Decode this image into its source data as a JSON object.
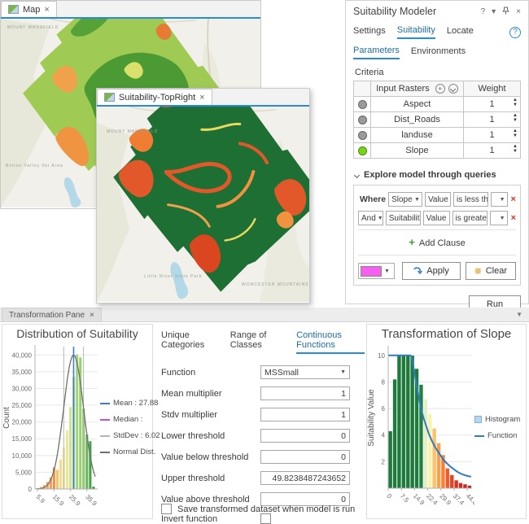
{
  "palette": {
    "accent": "#2a8ad4",
    "gray_dot": "#9b9b9b",
    "green_dot": "#76d514",
    "query_swatch": "#f560ee",
    "red_x": "#d93025",
    "add_green": "#3f9c35"
  },
  "map1": {
    "tab_label": "Map",
    "close": "×",
    "basemap_labels": [
      "MOUNT MANSFIELD",
      "Bolton Valley Ski Area",
      "Little River State Park"
    ]
  },
  "map2": {
    "tab_label": "Suitability-TopRight",
    "close": "×",
    "basemap_labels": [
      "MOUNT MANSFIELD",
      "Little River State Park",
      "WORCESTER MOUNTAINS"
    ]
  },
  "modeler": {
    "title": "Suitability Modeler",
    "titlebar": {
      "help": "?",
      "menu": "▾",
      "pin": "pin",
      "close": "×"
    },
    "tabs": [
      "Settings",
      "Suitability",
      "Locate"
    ],
    "active_tab": "Suitability",
    "help_badge": "?",
    "subtabs": [
      "Parameters",
      "Environments"
    ],
    "active_subtab": "Parameters",
    "criteria_label": "Criteria",
    "table": {
      "col1_header": "Input Rasters",
      "plus_icon": "+",
      "col2_header": "Weight",
      "rows": [
        {
          "name": "Aspect",
          "weight": "1",
          "dot": "#9b9b9b"
        },
        {
          "name": "Dist_Roads",
          "weight": "1",
          "dot": "#9b9b9b"
        },
        {
          "name": "landuse",
          "weight": "1",
          "dot": "#9b9b9b"
        },
        {
          "name": "Slope",
          "weight": "1",
          "dot": "#76d514"
        }
      ]
    },
    "queries": {
      "section_label": "Explore model through queries",
      "rows": [
        {
          "conj": "Where",
          "conj_is_dropdown": false,
          "field": "Slope",
          "part": "Value",
          "op": "is less th",
          "value": ""
        },
        {
          "conj": "And",
          "conj_is_dropdown": true,
          "field": "Suitabilit",
          "part": "Value",
          "op": "is greater",
          "value": ""
        }
      ],
      "add_clause": "Add Clause",
      "apply": "Apply",
      "clear": "Clear"
    },
    "run": "Run"
  },
  "tpane": {
    "tab_label": "Transformation Pane",
    "close": "×",
    "form": {
      "tabs": [
        "Unique Categories",
        "Range of Classes",
        "Continuous Functions"
      ],
      "active_tab": "Continuous Functions",
      "fields": [
        {
          "label": "Function",
          "value": "MSSmall",
          "type": "select"
        },
        {
          "label": "Mean multiplier",
          "value": "1",
          "type": "number"
        },
        {
          "label": "Stdv multiplier",
          "value": "1",
          "type": "number"
        },
        {
          "label": "Lower threshold",
          "value": "0",
          "type": "number"
        },
        {
          "label": "Value below threshold",
          "value": "0",
          "type": "number"
        },
        {
          "label": "Upper threshold",
          "value": "49.8238487243652",
          "type": "number"
        },
        {
          "label": "Value above threshold",
          "value": "0",
          "type": "number"
        },
        {
          "label": "Invert function",
          "value": "",
          "type": "checkbox",
          "checked": false
        }
      ],
      "save_label": "Save transformed dataset when model is run",
      "save_checked": false
    }
  },
  "chart_data": [
    {
      "type": "bar",
      "title": "Distribution of Suitability",
      "xlabel": "",
      "ylabel": "Count",
      "x_ticks": [
        5.9,
        15.9,
        25.9,
        35.9
      ],
      "y_ticks": [
        0,
        5000,
        10000,
        15000,
        20000,
        25000,
        30000,
        35000,
        40000
      ],
      "xlim": [
        4.4,
        42.5
      ],
      "ylim": [
        0,
        42500
      ],
      "y_format": "comma",
      "bars": {
        "start": 5,
        "width": 2,
        "values": [
          300,
          650,
          1200,
          2100,
          3500,
          6500,
          5800,
          8800,
          12500,
          17500,
          24500,
          33500,
          40200,
          39300,
          24000,
          16300,
          14300,
          700
        ],
        "colors": [
          "#f3b577",
          "#f2b070",
          "#f1aa67",
          "#f0a35c",
          "#ef9c52",
          "#ed9345",
          "#f0c36e",
          "#f2dc8e",
          "#f2e89c",
          "#e7e79c",
          "#cfe296",
          "#b7da85",
          "#a3d478",
          "#98d06e",
          "#86c663",
          "#68b755",
          "#46a149",
          "#2f8e3f"
        ]
      },
      "mean": 27.88,
      "median": null,
      "stddev": 6.02,
      "normal": {
        "mean": 27.88,
        "sd": 6.02,
        "peak": 40000
      },
      "stddev_lines": [
        21.86,
        33.9
      ],
      "legend": [
        {
          "label": "Mean : 27.88",
          "color": "#3a7bd5",
          "type": "line"
        },
        {
          "label": "Median :",
          "color": "#c44fd0",
          "type": "line"
        },
        {
          "label": "StdDev : 6.02",
          "color": "#b5b5b5",
          "type": "line"
        },
        {
          "label": "Normal Dist.",
          "color": "#6f6f6f",
          "type": "line"
        }
      ],
      "legend_position": "right",
      "grid": true
    },
    {
      "type": "bar",
      "title": "Transformation of Slope",
      "xlabel": "",
      "ylabel": "Suitability Value",
      "x_ticks": [
        0,
        7.5,
        14.9,
        22.4,
        29.9,
        37.4,
        44.8
      ],
      "y_ticks": [
        2,
        4,
        6,
        8,
        10
      ],
      "xlim": [
        0,
        47.5
      ],
      "ylim": [
        0,
        10.6
      ],
      "y_format": "plain",
      "bars": {
        "start": 0,
        "width": 2.49,
        "values": [
          4.3,
          8.2,
          10,
          10,
          10,
          10,
          9.0,
          7.8,
          6.7,
          5.6,
          4.5,
          3.4,
          2.5,
          1.5,
          1.0,
          0.6,
          0.4,
          0.3,
          0.2
        ],
        "colors": [
          "#1e7b3c",
          "#1e7b3c",
          "#1d7a3b",
          "#1d7a3b",
          "#1d7a3b",
          "#1d7a3b",
          "#1e7b3c",
          "#228040",
          "#e6efc4",
          "#f8f3b0",
          "#fcc169",
          "#fba14e",
          "#f97f36",
          "#ef5a2a",
          "#e14424",
          "#d63520",
          "#cd2b1e",
          "#c6251c",
          "#c0211a"
        ]
      },
      "function_curve": [
        [
          0,
          10
        ],
        [
          11,
          10
        ],
        [
          12.5,
          10
        ],
        [
          13.2,
          9.9
        ],
        [
          14,
          9.4
        ],
        [
          15,
          8.6
        ],
        [
          16,
          7.8
        ],
        [
          17,
          7.1
        ],
        [
          18,
          6.4
        ],
        [
          19,
          5.8
        ],
        [
          20,
          5.3
        ],
        [
          21.5,
          4.7
        ],
        [
          23,
          4.1
        ],
        [
          25,
          3.5
        ],
        [
          27,
          3.0
        ],
        [
          29,
          2.6
        ],
        [
          31,
          2.2
        ],
        [
          33,
          1.9
        ],
        [
          35,
          1.65
        ],
        [
          37,
          1.45
        ],
        [
          39,
          1.25
        ],
        [
          41,
          1.1
        ],
        [
          43,
          1.0
        ],
        [
          45,
          0.92
        ],
        [
          47,
          0.87
        ]
      ],
      "function_color": "#2e7bc4",
      "legend": [
        {
          "label": "Histogram",
          "color": "#b9d7ea",
          "type": "square"
        },
        {
          "label": "Function",
          "color": "#2e7bc4",
          "type": "line"
        }
      ],
      "legend_position": "right",
      "grid": true
    }
  ]
}
